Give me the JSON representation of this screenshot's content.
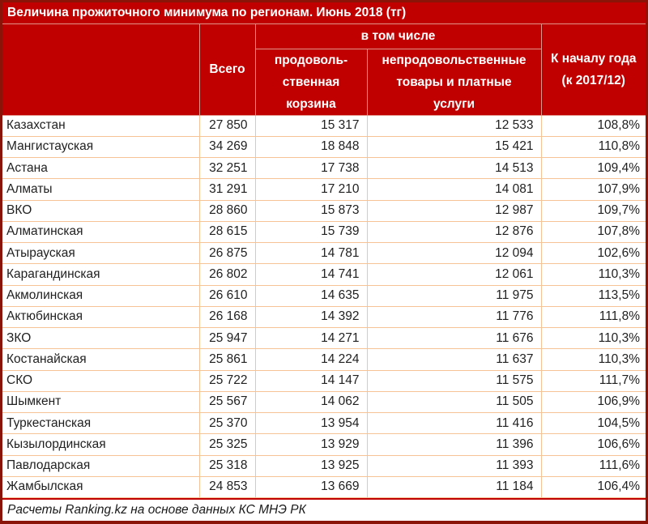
{
  "chart_data": {
    "type": "table",
    "title": "Величина прожиточного минимума по регионам. Июнь 2018 (тг)",
    "headers": {
      "region": "",
      "total": "Всего",
      "including_group": "в том числе",
      "food_basket": "продоволь-\nственная\nкорзина",
      "nonfood_services": "непродовольственные\nтовары и платные\nуслуги",
      "vs_year_start": "К началу года\n(к 2017/12)"
    },
    "rows": [
      {
        "region": "Казахстан",
        "total": "27 850",
        "food": "15 317",
        "nonfood": "12 533",
        "change": "108,8%"
      },
      {
        "region": "Мангистауская",
        "total": "34 269",
        "food": "18 848",
        "nonfood": "15 421",
        "change": "110,8%"
      },
      {
        "region": "Астана",
        "total": "32 251",
        "food": "17 738",
        "nonfood": "14 513",
        "change": "109,4%"
      },
      {
        "region": "Алматы",
        "total": "31 291",
        "food": "17 210",
        "nonfood": "14 081",
        "change": "107,9%"
      },
      {
        "region": "ВКО",
        "total": "28 860",
        "food": "15 873",
        "nonfood": "12 987",
        "change": "109,7%"
      },
      {
        "region": "Алматинская",
        "total": "28 615",
        "food": "15 739",
        "nonfood": "12 876",
        "change": "107,8%"
      },
      {
        "region": "Атырауская",
        "total": "26 875",
        "food": "14 781",
        "nonfood": "12 094",
        "change": "102,6%"
      },
      {
        "region": "Карагандинская",
        "total": "26 802",
        "food": "14 741",
        "nonfood": "12 061",
        "change": "110,3%"
      },
      {
        "region": "Акмолинская",
        "total": "26 610",
        "food": "14 635",
        "nonfood": "11 975",
        "change": "113,5%"
      },
      {
        "region": "Актюбинская",
        "total": "26 168",
        "food": "14 392",
        "nonfood": "11 776",
        "change": "111,8%"
      },
      {
        "region": "ЗКО",
        "total": "25 947",
        "food": "14 271",
        "nonfood": "11 676",
        "change": "110,3%"
      },
      {
        "region": "Костанайская",
        "total": "25 861",
        "food": "14 224",
        "nonfood": "11 637",
        "change": "110,3%"
      },
      {
        "region": "СКО",
        "total": "25 722",
        "food": "14 147",
        "nonfood": "11 575",
        "change": "111,7%"
      },
      {
        "region": "Шымкент",
        "total": "25 567",
        "food": "14 062",
        "nonfood": "11 505",
        "change": "106,9%"
      },
      {
        "region": "Туркестанская",
        "total": "25 370",
        "food": "13 954",
        "nonfood": "11 416",
        "change": "104,5%"
      },
      {
        "region": "Кызылординская",
        "total": "25 325",
        "food": "13 929",
        "nonfood": "11 396",
        "change": "106,6%"
      },
      {
        "region": "Павлодарская",
        "total": "25 318",
        "food": "13 925",
        "nonfood": "11 393",
        "change": "111,6%"
      },
      {
        "region": "Жамбылская",
        "total": "24 853",
        "food": "13 669",
        "nonfood": "11 184",
        "change": "106,4%"
      }
    ],
    "footer": "Расчеты Ranking.kz на основе данных КС МНЭ РК"
  },
  "colors": {
    "header_bg": "#C00000",
    "header_divider": "#E2948A",
    "grid_line": "#F6C396",
    "outer_border": "#8B1409",
    "header_text": "#FFFFFF",
    "body_text": "#1F1F1F"
  }
}
